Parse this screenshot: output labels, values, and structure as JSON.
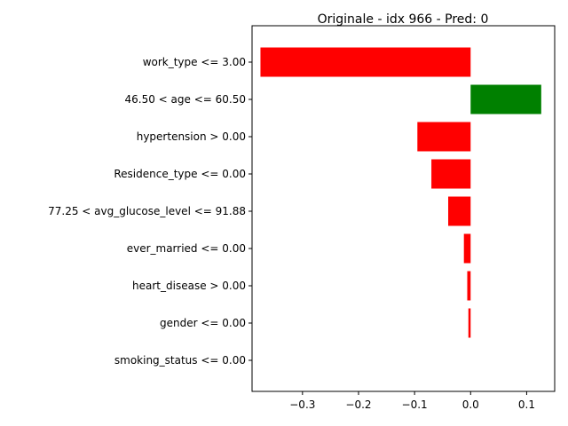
{
  "chart_data": {
    "type": "bar",
    "orientation": "horizontal",
    "title": "Originale - idx 966 - Pred: 0",
    "xlabel": "",
    "ylabel": "",
    "xlim": [
      -0.39,
      0.15
    ],
    "xticks": [
      -0.3,
      -0.2,
      -0.1,
      0.0,
      0.1
    ],
    "xtick_labels": [
      "−0.3",
      "−0.2",
      "−0.1",
      "0.0",
      "0.1"
    ],
    "grid": false,
    "colors": {
      "positive": "#008000",
      "negative": "#ff0000"
    },
    "categories": [
      "work_type <= 3.00",
      "46.50 < age <= 60.50",
      "hypertension > 0.00",
      "Residence_type <= 0.00",
      "77.25 < avg_glucose_level <= 91.88",
      "ever_married <= 0.00",
      "heart_disease > 0.00",
      "gender <= 0.00",
      "smoking_status <= 0.00"
    ],
    "values": [
      -0.375,
      0.126,
      -0.095,
      -0.07,
      -0.04,
      -0.012,
      -0.006,
      -0.004,
      0.0
    ]
  }
}
